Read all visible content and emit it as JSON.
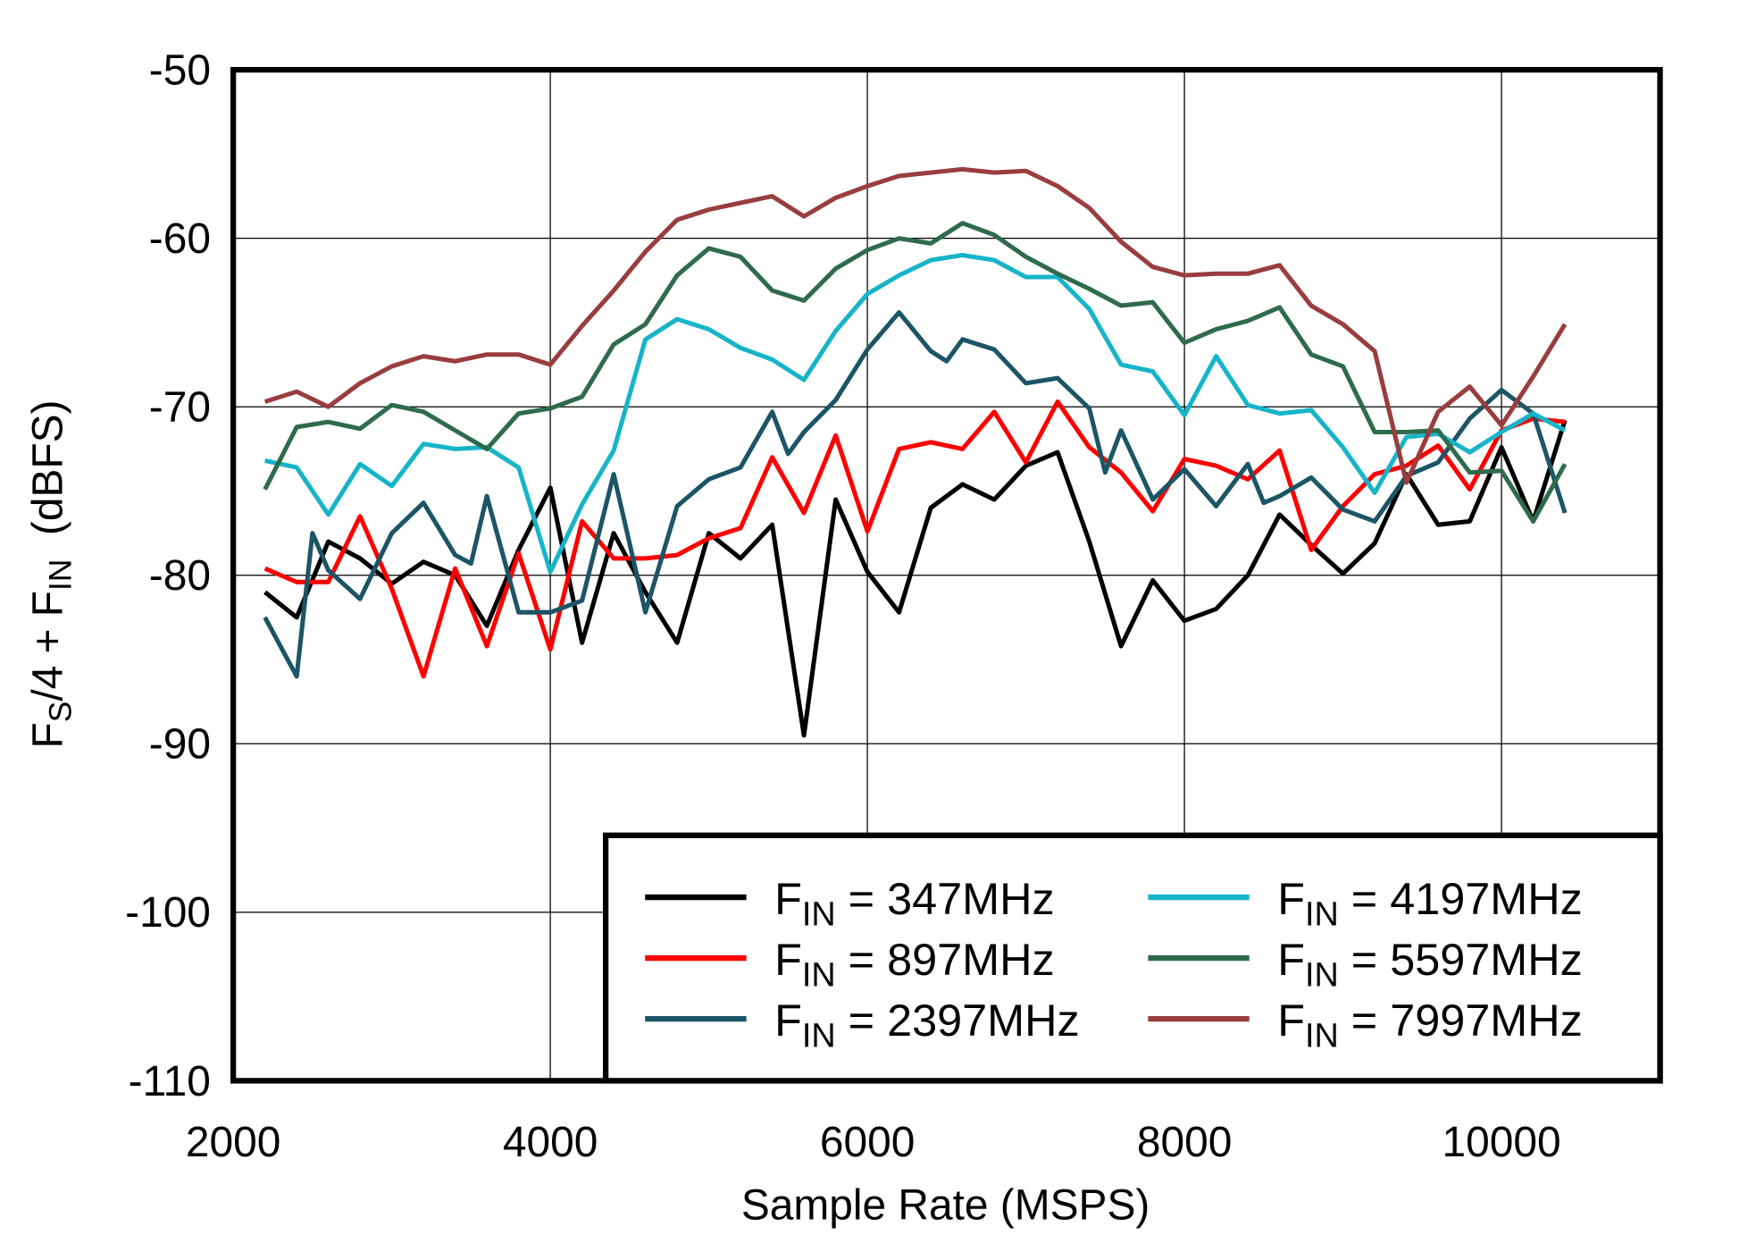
{
  "chart_data": {
    "type": "line",
    "title": "",
    "xlabel": "Sample Rate  (MSPS)",
    "ylabel": {
      "p1": "F",
      "s1": "S",
      "p2": "/4 + F",
      "s2": "IN",
      "p3": "  (dBFS)"
    },
    "xlim": [
      2000,
      11000
    ],
    "ylim": [
      -110,
      -50
    ],
    "xticks": [
      2000,
      4000,
      6000,
      8000,
      10000
    ],
    "xtick_labels": [
      "2000",
      "4000",
      "6000",
      "8000",
      "10000"
    ],
    "yticks": [
      -50,
      -60,
      -70,
      -80,
      -90,
      -100,
      -110
    ],
    "ytick_labels": [
      "-50",
      "-60",
      "-70",
      "-80",
      "-90",
      "-100",
      "-110"
    ],
    "grid": true,
    "legend_placement": "bottom-right",
    "series": [
      {
        "name": "FIN = 347MHz",
        "label": {
          "p": "F",
          "s": "IN",
          "t": " = 347MHz"
        },
        "color": "#000000",
        "points": [
          [
            2200,
            -81
          ],
          [
            2400,
            -82.5
          ],
          [
            2600,
            -78
          ],
          [
            2800,
            -79
          ],
          [
            3000,
            -80.5
          ],
          [
            3200,
            -79.2
          ],
          [
            3400,
            -80
          ],
          [
            3600,
            -83
          ],
          [
            3800,
            -78.5
          ],
          [
            4000,
            -74.8
          ],
          [
            4200,
            -84
          ],
          [
            4400,
            -77.5
          ],
          [
            4600,
            -81
          ],
          [
            4800,
            -84
          ],
          [
            5000,
            -77.5
          ],
          [
            5200,
            -79
          ],
          [
            5400,
            -77
          ],
          [
            5600,
            -89.5
          ],
          [
            5800,
            -75.5
          ],
          [
            6000,
            -79.8
          ],
          [
            6200,
            -82.2
          ],
          [
            6400,
            -76
          ],
          [
            6600,
            -74.6
          ],
          [
            6800,
            -75.5
          ],
          [
            7000,
            -73.5
          ],
          [
            7200,
            -72.7
          ],
          [
            7400,
            -78
          ],
          [
            7600,
            -84.2
          ],
          [
            7800,
            -80.3
          ],
          [
            8000,
            -82.7
          ],
          [
            8200,
            -82
          ],
          [
            8400,
            -80
          ],
          [
            8600,
            -76.4
          ],
          [
            8800,
            -78.2
          ],
          [
            9000,
            -79.9
          ],
          [
            9200,
            -78.1
          ],
          [
            9400,
            -74
          ],
          [
            9600,
            -77
          ],
          [
            9800,
            -76.8
          ],
          [
            10000,
            -72.4
          ],
          [
            10200,
            -76.8
          ],
          [
            10400,
            -70.8
          ]
        ]
      },
      {
        "name": "FIN = 897MHz",
        "label": {
          "p": "F",
          "s": "IN",
          "t": " = 897MHz"
        },
        "color": "#ff0000",
        "points": [
          [
            2200,
            -79.6
          ],
          [
            2400,
            -80.4
          ],
          [
            2600,
            -80.4
          ],
          [
            2800,
            -76.5
          ],
          [
            3000,
            -80.8
          ],
          [
            3200,
            -86
          ],
          [
            3400,
            -79.6
          ],
          [
            3600,
            -84.2
          ],
          [
            3800,
            -78.7
          ],
          [
            4000,
            -84.4
          ],
          [
            4200,
            -76.8
          ],
          [
            4400,
            -79
          ],
          [
            4600,
            -79
          ],
          [
            4800,
            -78.8
          ],
          [
            5000,
            -77.8
          ],
          [
            5200,
            -77.2
          ],
          [
            5400,
            -73
          ],
          [
            5600,
            -76.3
          ],
          [
            5800,
            -71.7
          ],
          [
            6000,
            -77.4
          ],
          [
            6200,
            -72.5
          ],
          [
            6400,
            -72.1
          ],
          [
            6600,
            -72.5
          ],
          [
            6800,
            -70.3
          ],
          [
            7000,
            -73.3
          ],
          [
            7200,
            -69.7
          ],
          [
            7400,
            -72.4
          ],
          [
            7600,
            -73.9
          ],
          [
            7800,
            -76.2
          ],
          [
            8000,
            -73.1
          ],
          [
            8200,
            -73.5
          ],
          [
            8400,
            -74.3
          ],
          [
            8600,
            -72.6
          ],
          [
            8800,
            -78.5
          ],
          [
            9000,
            -75.9
          ],
          [
            9200,
            -74
          ],
          [
            9400,
            -73.5
          ],
          [
            9600,
            -72.3
          ],
          [
            9800,
            -74.9
          ],
          [
            10000,
            -71.4
          ],
          [
            10200,
            -70.7
          ],
          [
            10400,
            -70.9
          ]
        ]
      },
      {
        "name": "FIN = 2397MHz",
        "label": {
          "p": "F",
          "s": "IN",
          "t": " = 2397MHz"
        },
        "color": "#1b5566",
        "points": [
          [
            2200,
            -82.5
          ],
          [
            2400,
            -86
          ],
          [
            2500,
            -77.5
          ],
          [
            2600,
            -79.7
          ],
          [
            2800,
            -81.4
          ],
          [
            3000,
            -77.5
          ],
          [
            3200,
            -75.7
          ],
          [
            3400,
            -78.8
          ],
          [
            3500,
            -79.3
          ],
          [
            3600,
            -75.3
          ],
          [
            3800,
            -82.2
          ],
          [
            4000,
            -82.2
          ],
          [
            4200,
            -81.5
          ],
          [
            4400,
            -74
          ],
          [
            4600,
            -82.2
          ],
          [
            4800,
            -75.9
          ],
          [
            5000,
            -74.3
          ],
          [
            5200,
            -73.6
          ],
          [
            5400,
            -70.3
          ],
          [
            5500,
            -72.8
          ],
          [
            5600,
            -71.5
          ],
          [
            5800,
            -69.6
          ],
          [
            6000,
            -66.6
          ],
          [
            6200,
            -64.4
          ],
          [
            6400,
            -66.7
          ],
          [
            6500,
            -67.3
          ],
          [
            6600,
            -66
          ],
          [
            6800,
            -66.6
          ],
          [
            7000,
            -68.6
          ],
          [
            7200,
            -68.3
          ],
          [
            7400,
            -70.1
          ],
          [
            7500,
            -73.9
          ],
          [
            7600,
            -71.4
          ],
          [
            7800,
            -75.5
          ],
          [
            8000,
            -73.7
          ],
          [
            8200,
            -75.9
          ],
          [
            8400,
            -73.4
          ],
          [
            8500,
            -75.7
          ],
          [
            8600,
            -75.3
          ],
          [
            8800,
            -74.2
          ],
          [
            9000,
            -76.1
          ],
          [
            9200,
            -76.8
          ],
          [
            9400,
            -74.1
          ],
          [
            9600,
            -73.3
          ],
          [
            9800,
            -70.7
          ],
          [
            10000,
            -69
          ],
          [
            10200,
            -70.4
          ],
          [
            10400,
            -76.3
          ]
        ]
      },
      {
        "name": "FIN = 4197MHz",
        "label": {
          "p": "F",
          "s": "IN",
          "t": " = 4197MHz"
        },
        "color": "#17b4c9",
        "points": [
          [
            2200,
            -73.2
          ],
          [
            2400,
            -73.6
          ],
          [
            2600,
            -76.4
          ],
          [
            2800,
            -73.4
          ],
          [
            3000,
            -74.7
          ],
          [
            3200,
            -72.2
          ],
          [
            3400,
            -72.5
          ],
          [
            3600,
            -72.4
          ],
          [
            3800,
            -73.6
          ],
          [
            4000,
            -79.8
          ],
          [
            4200,
            -75.8
          ],
          [
            4400,
            -72.6
          ],
          [
            4600,
            -66
          ],
          [
            4800,
            -64.8
          ],
          [
            5000,
            -65.4
          ],
          [
            5200,
            -66.5
          ],
          [
            5400,
            -67.2
          ],
          [
            5600,
            -68.4
          ],
          [
            5800,
            -65.5
          ],
          [
            6000,
            -63.3
          ],
          [
            6200,
            -62.2
          ],
          [
            6400,
            -61.3
          ],
          [
            6600,
            -61
          ],
          [
            6800,
            -61.3
          ],
          [
            7000,
            -62.3
          ],
          [
            7200,
            -62.3
          ],
          [
            7400,
            -64.2
          ],
          [
            7600,
            -67.5
          ],
          [
            7800,
            -67.9
          ],
          [
            8000,
            -70.5
          ],
          [
            8200,
            -67
          ],
          [
            8400,
            -69.9
          ],
          [
            8600,
            -70.4
          ],
          [
            8800,
            -70.2
          ],
          [
            9000,
            -72.4
          ],
          [
            9200,
            -75.1
          ],
          [
            9400,
            -71.8
          ],
          [
            9600,
            -71.6
          ],
          [
            9800,
            -72.7
          ],
          [
            10000,
            -71.5
          ],
          [
            10200,
            -70.4
          ],
          [
            10400,
            -71.4
          ]
        ]
      },
      {
        "name": "FIN = 5597MHz",
        "label": {
          "p": "F",
          "s": "IN",
          "t": " = 5597MHz"
        },
        "color": "#2e6b4b",
        "points": [
          [
            2200,
            -74.9
          ],
          [
            2400,
            -71.2
          ],
          [
            2600,
            -70.9
          ],
          [
            2800,
            -71.3
          ],
          [
            3000,
            -69.9
          ],
          [
            3200,
            -70.3
          ],
          [
            3400,
            -71.4
          ],
          [
            3600,
            -72.5
          ],
          [
            3800,
            -70.4
          ],
          [
            4000,
            -70.1
          ],
          [
            4200,
            -69.4
          ],
          [
            4400,
            -66.3
          ],
          [
            4600,
            -65.1
          ],
          [
            4800,
            -62.2
          ],
          [
            5000,
            -60.6
          ],
          [
            5200,
            -61.1
          ],
          [
            5400,
            -63.1
          ],
          [
            5600,
            -63.7
          ],
          [
            5800,
            -61.8
          ],
          [
            6000,
            -60.7
          ],
          [
            6200,
            -60
          ],
          [
            6400,
            -60.3
          ],
          [
            6600,
            -59.1
          ],
          [
            6800,
            -59.8
          ],
          [
            7000,
            -61.1
          ],
          [
            7200,
            -62.1
          ],
          [
            7400,
            -63
          ],
          [
            7600,
            -64
          ],
          [
            7800,
            -63.8
          ],
          [
            8000,
            -66.2
          ],
          [
            8200,
            -65.4
          ],
          [
            8400,
            -64.9
          ],
          [
            8600,
            -64.1
          ],
          [
            8800,
            -66.9
          ],
          [
            9000,
            -67.6
          ],
          [
            9200,
            -71.5
          ],
          [
            9400,
            -71.5
          ],
          [
            9600,
            -71.4
          ],
          [
            9800,
            -73.9
          ],
          [
            10000,
            -73.8
          ],
          [
            10200,
            -76.8
          ],
          [
            10400,
            -73.4
          ]
        ]
      },
      {
        "name": "FIN = 7997MHz",
        "label": {
          "p": "F",
          "s": "IN",
          "t": " = 7997MHz"
        },
        "color": "#993d3f",
        "points": [
          [
            2200,
            -69.7
          ],
          [
            2400,
            -69.1
          ],
          [
            2600,
            -70
          ],
          [
            2800,
            -68.6
          ],
          [
            3000,
            -67.6
          ],
          [
            3200,
            -67
          ],
          [
            3400,
            -67.3
          ],
          [
            3600,
            -66.9
          ],
          [
            3800,
            -66.9
          ],
          [
            4000,
            -67.5
          ],
          [
            4200,
            -65.2
          ],
          [
            4400,
            -63.1
          ],
          [
            4600,
            -60.8
          ],
          [
            4800,
            -58.9
          ],
          [
            5000,
            -58.3
          ],
          [
            5200,
            -57.9
          ],
          [
            5400,
            -57.5
          ],
          [
            5600,
            -58.7
          ],
          [
            5800,
            -57.6
          ],
          [
            6000,
            -56.9
          ],
          [
            6200,
            -56.3
          ],
          [
            6400,
            -56.1
          ],
          [
            6600,
            -55.9
          ],
          [
            6800,
            -56.1
          ],
          [
            7000,
            -56
          ],
          [
            7200,
            -56.9
          ],
          [
            7400,
            -58.2
          ],
          [
            7600,
            -60.2
          ],
          [
            7800,
            -61.7
          ],
          [
            8000,
            -62.2
          ],
          [
            8200,
            -62.1
          ],
          [
            8400,
            -62.1
          ],
          [
            8600,
            -61.6
          ],
          [
            8800,
            -64
          ],
          [
            9000,
            -65.1
          ],
          [
            9200,
            -66.7
          ],
          [
            9400,
            -74.5
          ],
          [
            9600,
            -70.3
          ],
          [
            9800,
            -68.8
          ],
          [
            10000,
            -71.1
          ],
          [
            10200,
            -68.2
          ],
          [
            10400,
            -65.1
          ]
        ]
      }
    ]
  }
}
